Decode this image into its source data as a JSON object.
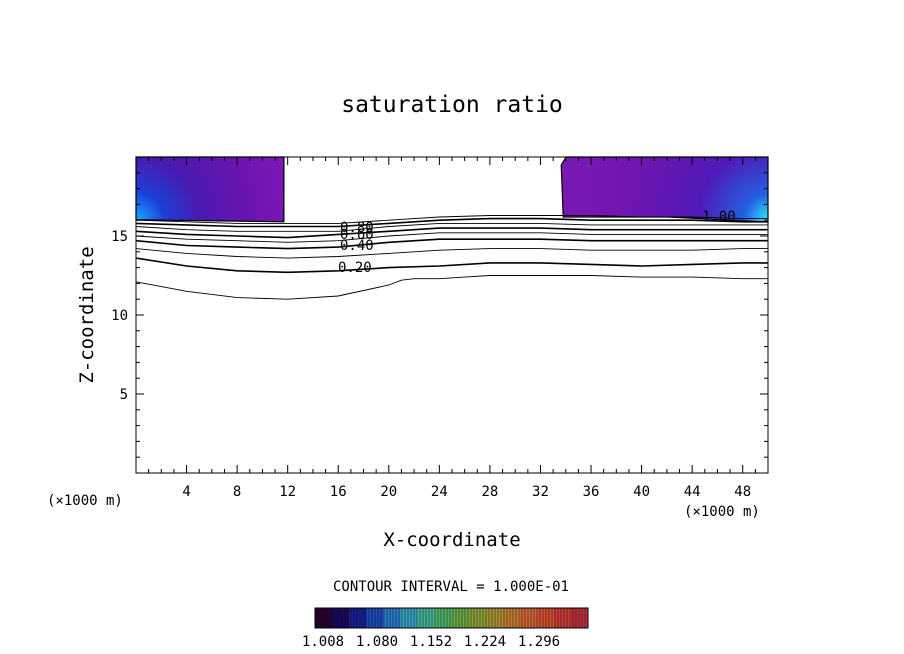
{
  "chart_data": {
    "type": "contour",
    "title": "saturation ratio",
    "xlabel": "X-coordinate",
    "ylabel": "Z-coordinate",
    "x_unit": "(×1000 m)",
    "z_unit": "(×1000 m)",
    "xlim": [
      0,
      50
    ],
    "ylim": [
      0,
      20
    ],
    "x_ticks": [
      "4",
      "8",
      "12",
      "16",
      "20",
      "24",
      "28",
      "32",
      "36",
      "40",
      "44",
      "48"
    ],
    "y_ticks": [
      "5",
      "10",
      "15"
    ],
    "contour_interval_text": "CONTOUR INTERVAL = 1.000E-01",
    "contour_labels": [
      "0.80",
      "0.60",
      "0.40",
      "0.20",
      "1.00"
    ],
    "contour_lines": [
      {
        "level": 0.1,
        "x": [
          0,
          4,
          8,
          12,
          16,
          20,
          21,
          22,
          24,
          26,
          28,
          32,
          36,
          40,
          44,
          48,
          50
        ],
        "z": [
          12.1,
          11.5,
          11.1,
          11.0,
          11.2,
          11.9,
          12.2,
          12.3,
          12.3,
          12.4,
          12.5,
          12.5,
          12.5,
          12.4,
          12.4,
          12.3,
          12.3
        ]
      },
      {
        "level": 0.2,
        "x": [
          0,
          4,
          8,
          12,
          16,
          20,
          24,
          28,
          32,
          36,
          40,
          44,
          48,
          50
        ],
        "z": [
          13.6,
          13.1,
          12.8,
          12.7,
          12.8,
          13.0,
          13.1,
          13.3,
          13.3,
          13.2,
          13.1,
          13.2,
          13.3,
          13.3
        ]
      },
      {
        "level": 0.3,
        "x": [
          0,
          4,
          8,
          12,
          16,
          20,
          24,
          28,
          32,
          36,
          40,
          44,
          48,
          50
        ],
        "z": [
          14.2,
          13.9,
          13.7,
          13.6,
          13.7,
          13.9,
          14.1,
          14.2,
          14.2,
          14.1,
          14.1,
          14.1,
          14.2,
          14.2
        ]
      },
      {
        "level": 0.4,
        "x": [
          0,
          4,
          8,
          12,
          16,
          20,
          24,
          28,
          32,
          36,
          40,
          44,
          48,
          50
        ],
        "z": [
          14.7,
          14.4,
          14.3,
          14.2,
          14.3,
          14.6,
          14.8,
          14.8,
          14.8,
          14.7,
          14.7,
          14.7,
          14.7,
          14.7
        ]
      },
      {
        "level": 0.5,
        "x": [
          0,
          4,
          8,
          12,
          16,
          20,
          24,
          28,
          32,
          36,
          40,
          44,
          48,
          50
        ],
        "z": [
          15.0,
          14.8,
          14.7,
          14.6,
          14.7,
          15.0,
          15.2,
          15.2,
          15.2,
          15.1,
          15.1,
          15.1,
          15.1,
          15.1
        ]
      },
      {
        "level": 0.6,
        "x": [
          0,
          4,
          8,
          12,
          16,
          20,
          24,
          28,
          32,
          36,
          40,
          44,
          48,
          50
        ],
        "z": [
          15.3,
          15.1,
          15.0,
          14.9,
          15.1,
          15.3,
          15.5,
          15.5,
          15.5,
          15.4,
          15.4,
          15.4,
          15.4,
          15.4
        ]
      },
      {
        "level": 0.7,
        "x": [
          0,
          4,
          8,
          12,
          16,
          20,
          24,
          28,
          32,
          36,
          40,
          44,
          48,
          50
        ],
        "z": [
          15.6,
          15.4,
          15.3,
          15.3,
          15.3,
          15.6,
          15.8,
          15.8,
          15.8,
          15.7,
          15.7,
          15.7,
          15.7,
          15.7
        ]
      },
      {
        "level": 0.8,
        "x": [
          0,
          4,
          8,
          12,
          16,
          20,
          24,
          28,
          32,
          36,
          40,
          44,
          48,
          50
        ],
        "z": [
          15.8,
          15.7,
          15.6,
          15.6,
          15.6,
          15.8,
          16.0,
          16.1,
          16.1,
          16.0,
          16.0,
          16.0,
          15.9,
          15.9
        ]
      },
      {
        "level": 0.9,
        "x": [
          0,
          4,
          8,
          12,
          16,
          20,
          24,
          28,
          32,
          36,
          40,
          44,
          48,
          50
        ],
        "z": [
          16.0,
          15.9,
          15.8,
          15.8,
          15.8,
          16.0,
          16.2,
          16.3,
          16.3,
          16.3,
          16.2,
          16.2,
          16.1,
          16.1
        ]
      }
    ],
    "shaded_regions": [
      {
        "name": "left",
        "x": [
          0,
          11.7
        ],
        "z": [
          15.9,
          20
        ]
      },
      {
        "name": "right",
        "x": [
          33.8,
          50
        ],
        "z": [
          16.2,
          20
        ]
      }
    ],
    "colorbar": {
      "tick_labels": [
        "1.008",
        "1.080",
        "1.152",
        "1.224",
        "1.296"
      ],
      "colors": [
        "#2a0030",
        "#1a0a60",
        "#1a2090",
        "#1e4ab8",
        "#2a78c8",
        "#3a9ec0",
        "#46b09a",
        "#50b06a",
        "#6aa84a",
        "#8aa03c",
        "#a89238",
        "#c07c36",
        "#cc6634",
        "#d05034",
        "#c83c38",
        "#b8303c"
      ]
    },
    "grid": false,
    "legend": "none"
  }
}
